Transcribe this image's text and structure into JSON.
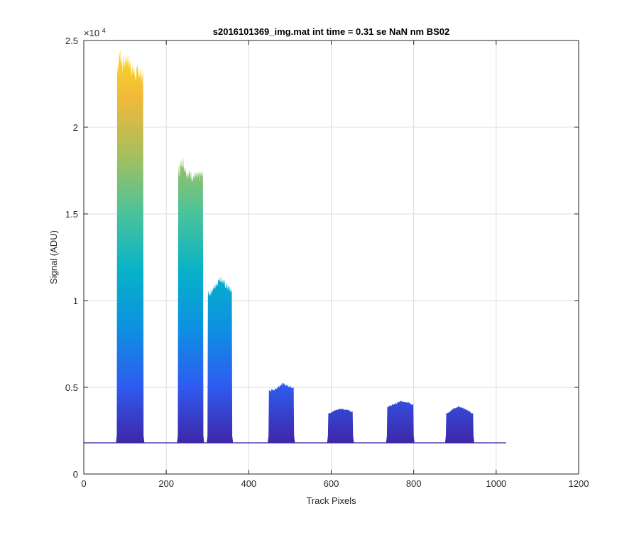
{
  "chart_data": {
    "type": "area",
    "title": "s2016101369_img.mat int time = 0.31 se  NaN nm BS02",
    "xlabel": "Track Pixels",
    "ylabel": "Signal (ADU)",
    "y_exponent_label": "×10",
    "y_exponent_power": "4",
    "xlim": [
      0,
      1200
    ],
    "ylim": [
      0,
      25000
    ],
    "x_ticks": [
      0,
      200,
      400,
      600,
      800,
      1000,
      1200
    ],
    "y_ticks": [
      0,
      5000,
      10000,
      15000,
      20000,
      25000
    ],
    "x_tick_labels": [
      "0",
      "200",
      "400",
      "600",
      "800",
      "1000",
      "1200"
    ],
    "y_tick_labels": [
      "0",
      "0.5",
      "1",
      "1.5",
      "2",
      "2.5"
    ],
    "grid": true,
    "baseline": 1800,
    "x_end": 1024,
    "bands": [
      {
        "name": "band-1",
        "x_start": 80,
        "x_end": 145,
        "peak_profile": [
          [
            82,
            23400
          ],
          [
            87,
            24300
          ],
          [
            95,
            23600
          ],
          [
            105,
            24000
          ],
          [
            115,
            23500
          ],
          [
            125,
            23000
          ],
          [
            135,
            23200
          ],
          [
            143,
            22800
          ]
        ]
      },
      {
        "name": "band-2",
        "x_start": 228,
        "x_end": 290,
        "peak_profile": [
          [
            233,
            17500
          ],
          [
            238,
            18100
          ],
          [
            250,
            17400
          ],
          [
            262,
            17200
          ],
          [
            275,
            17100
          ],
          [
            286,
            17200
          ]
        ]
      },
      {
        "name": "band-3",
        "x_start": 300,
        "x_end": 360,
        "peak_profile": [
          [
            305,
            10400
          ],
          [
            315,
            10700
          ],
          [
            330,
            11300
          ],
          [
            340,
            11000
          ],
          [
            355,
            10600
          ]
        ]
      },
      {
        "name": "band-4",
        "x_start": 448,
        "x_end": 510,
        "peak_profile": [
          [
            452,
            4800
          ],
          [
            465,
            4900
          ],
          [
            480,
            5200
          ],
          [
            495,
            5100
          ],
          [
            507,
            5000
          ]
        ]
      },
      {
        "name": "band-5",
        "x_start": 592,
        "x_end": 653,
        "peak_profile": [
          [
            597,
            3500
          ],
          [
            610,
            3700
          ],
          [
            625,
            3750
          ],
          [
            640,
            3700
          ],
          [
            650,
            3600
          ]
        ]
      },
      {
        "name": "band-6",
        "x_start": 735,
        "x_end": 800,
        "peak_profile": [
          [
            740,
            3900
          ],
          [
            755,
            4050
          ],
          [
            770,
            4200
          ],
          [
            785,
            4150
          ],
          [
            797,
            4000
          ]
        ]
      },
      {
        "name": "band-7",
        "x_start": 878,
        "x_end": 945,
        "peak_profile": [
          [
            883,
            3500
          ],
          [
            895,
            3750
          ],
          [
            910,
            3900
          ],
          [
            925,
            3750
          ],
          [
            941,
            3500
          ]
        ]
      }
    ],
    "colormap": [
      "#3e26a8",
      "#2e5cf0",
      "#0d91e1",
      "#07b2c8",
      "#4bc39a",
      "#a6bf5c",
      "#f1b93a",
      "#f9e022"
    ]
  }
}
